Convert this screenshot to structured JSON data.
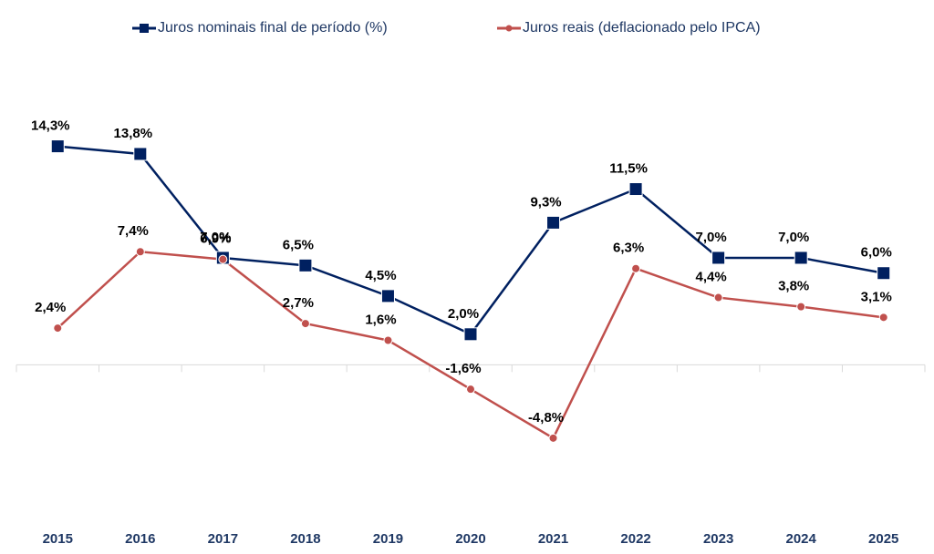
{
  "chart_data": {
    "type": "line",
    "categories": [
      "2015",
      "2016",
      "2017",
      "2018",
      "2019",
      "2020",
      "2021",
      "2022",
      "2023",
      "2024",
      "2025"
    ],
    "series": [
      {
        "name": "Juros nominais final de período (%)",
        "color": "#002060",
        "marker": "square",
        "values": [
          14.3,
          13.8,
          7.0,
          6.5,
          4.5,
          2.0,
          9.3,
          11.5,
          7.0,
          7.0,
          6.0
        ],
        "value_labels": [
          "14,3%",
          "13,8%",
          "7,0%",
          "6,5%",
          "4,5%",
          "2,0%",
          "9,3%",
          "11,5%",
          "7,0%",
          "7,0%",
          "6,0%"
        ]
      },
      {
        "name": "Juros reais (deflacionado pelo IPCA)",
        "color": "#c0504d",
        "marker": "circle",
        "values": [
          2.4,
          7.4,
          6.9,
          2.7,
          1.6,
          -1.6,
          -4.8,
          6.3,
          4.4,
          3.8,
          3.1
        ],
        "value_labels": [
          "2,4%",
          "7,4%",
          "6,9%",
          "2,7%",
          "1,6%",
          "-1,6%",
          "-4,8%",
          "6,3%",
          "4,4%",
          "3,8%",
          "3,1%"
        ]
      }
    ],
    "ylim": [
      -10,
      20
    ],
    "legend": "top"
  }
}
